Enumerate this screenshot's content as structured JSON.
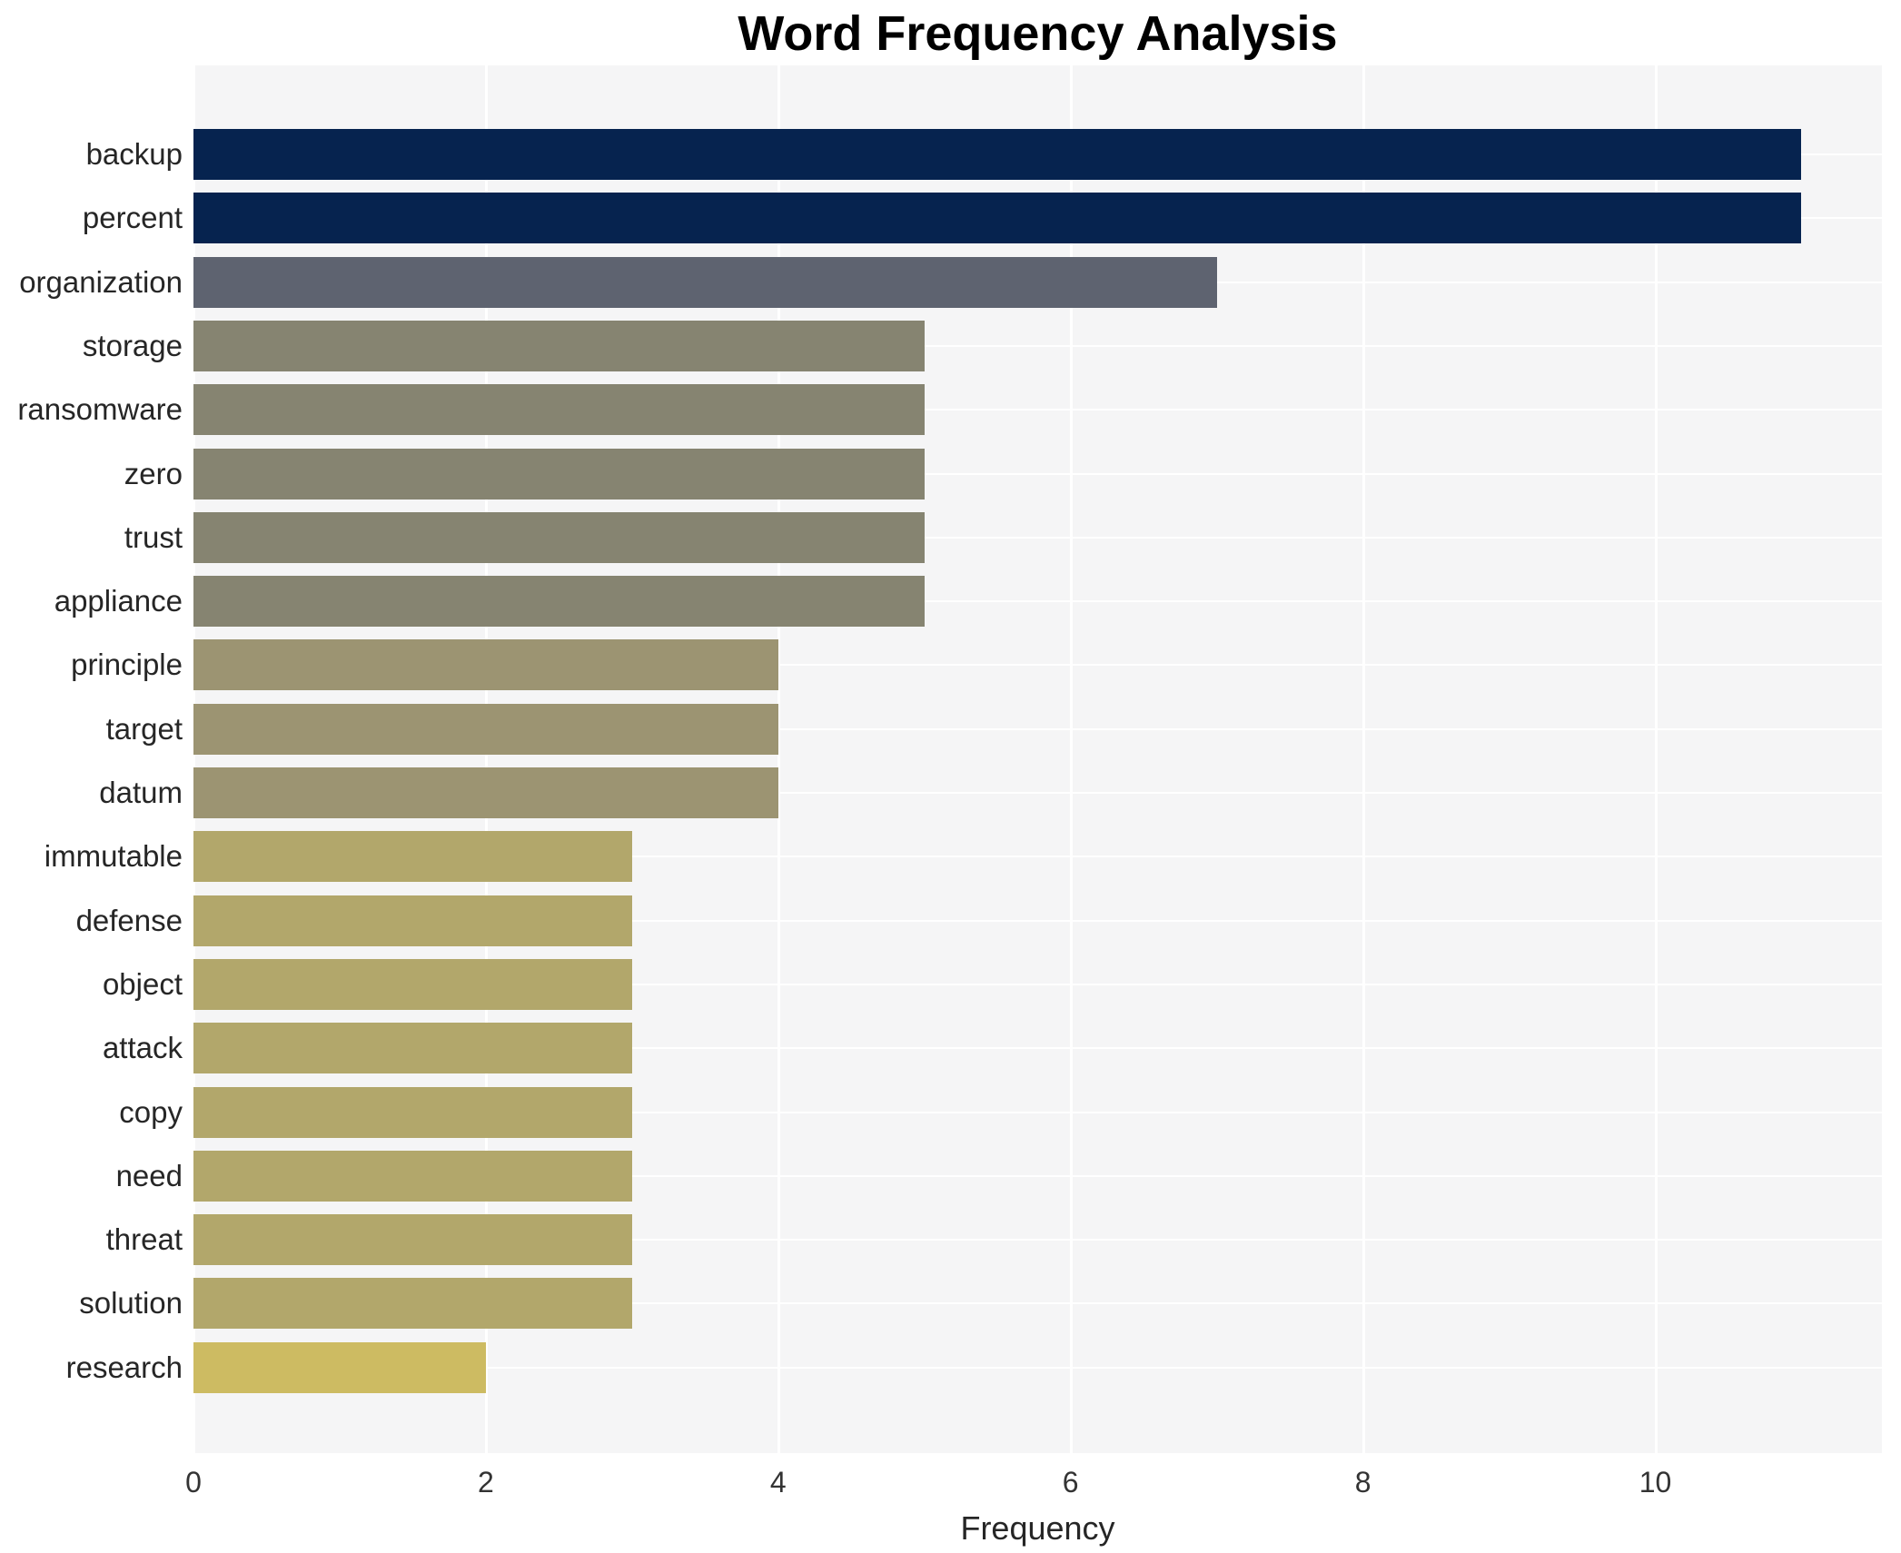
{
  "title": "Word Frequency Analysis",
  "chart_data": {
    "type": "bar",
    "orientation": "horizontal",
    "title": "Word Frequency Analysis",
    "xlabel": "Frequency",
    "ylabel": "",
    "categories": [
      "backup",
      "percent",
      "organization",
      "storage",
      "ransomware",
      "zero",
      "trust",
      "appliance",
      "principle",
      "target",
      "datum",
      "immutable",
      "defense",
      "object",
      "attack",
      "copy",
      "need",
      "threat",
      "solution",
      "research"
    ],
    "values": [
      11,
      11,
      7,
      5,
      5,
      5,
      5,
      5,
      4,
      4,
      4,
      3,
      3,
      3,
      3,
      3,
      3,
      3,
      3,
      2
    ],
    "bar_colors": [
      "#06234f",
      "#06234f",
      "#5e6370",
      "#868471",
      "#868471",
      "#868471",
      "#868471",
      "#868471",
      "#9c9472",
      "#9c9472",
      "#9c9472",
      "#b2a76b",
      "#b2a76b",
      "#b2a76b",
      "#b2a76b",
      "#b2a76b",
      "#b2a76b",
      "#b2a76b",
      "#b2a76b",
      "#cdbb62"
    ],
    "x_ticks": [
      0,
      2,
      4,
      6,
      8,
      10
    ],
    "xlim": [
      0,
      11.55
    ],
    "grid": "white horizontal and vertical gridlines on light gray panel, behind bars",
    "legend": "none"
  },
  "style": {
    "panel_bg": "#f5f5f6",
    "figure_bg": "#ffffff",
    "gridline_color": "#ffffff",
    "title_color": "#000000",
    "label_color": "#262626",
    "tick_color": "#333333"
  }
}
